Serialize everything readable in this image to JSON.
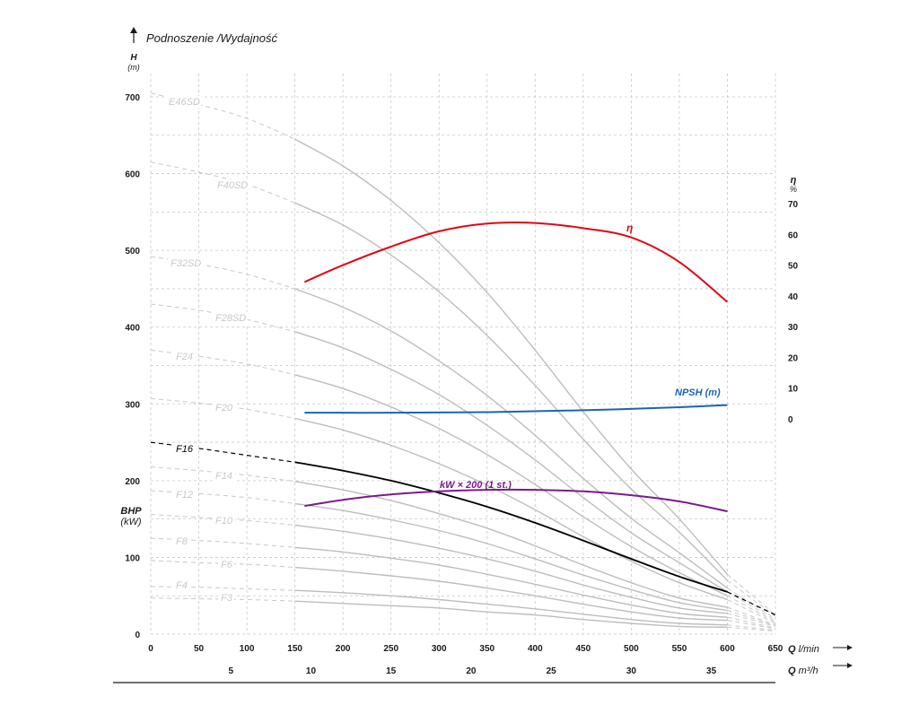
{
  "chart_data": {
    "type": "line",
    "title": "Podnoszenie /Wydajność",
    "x_axis": {
      "label": "Q l/min",
      "range": [
        0,
        650
      ],
      "ticks": [
        0,
        50,
        100,
        150,
        200,
        250,
        300,
        350,
        400,
        450,
        500,
        550,
        600,
        650
      ]
    },
    "x2_axis": {
      "label": "Q m³/h",
      "ticks": [
        5,
        10,
        15,
        20,
        25,
        30,
        35
      ]
    },
    "y_axis": {
      "label": "H",
      "unit": "(m)",
      "range": [
        0,
        700
      ],
      "ticks": [
        0,
        100,
        200,
        300,
        400,
        500,
        600,
        700
      ],
      "bhp_label": "BHP",
      "bhp_unit": "(kW)"
    },
    "y2_axis": {
      "label": "η",
      "unit": "%",
      "range": [
        0,
        70
      ],
      "ticks": [
        0,
        10,
        20,
        30,
        40,
        50,
        60,
        70
      ]
    },
    "series": [
      {
        "name": "E46SD",
        "color": "#bdbdbd",
        "values": [
          [
            0,
            705
          ],
          [
            50,
            690
          ],
          [
            100,
            672
          ],
          [
            150,
            645
          ],
          [
            200,
            610
          ],
          [
            250,
            565
          ],
          [
            300,
            510
          ],
          [
            350,
            445
          ],
          [
            400,
            370
          ],
          [
            450,
            290
          ],
          [
            500,
            215
          ],
          [
            550,
            150
          ],
          [
            600,
            78
          ],
          [
            650,
            25
          ]
        ]
      },
      {
        "name": "F40SD",
        "color": "#bdbdbd",
        "values": [
          [
            0,
            615
          ],
          [
            50,
            602
          ],
          [
            100,
            586
          ],
          [
            150,
            562
          ],
          [
            200,
            533
          ],
          [
            250,
            494
          ],
          [
            300,
            446
          ],
          [
            350,
            389
          ],
          [
            400,
            324
          ],
          [
            450,
            254
          ],
          [
            500,
            189
          ],
          [
            550,
            133
          ],
          [
            600,
            70
          ],
          [
            650,
            23
          ]
        ]
      },
      {
        "name": "F32SD",
        "color": "#bdbdbd",
        "values": [
          [
            0,
            492
          ],
          [
            50,
            482
          ],
          [
            100,
            469
          ],
          [
            150,
            450
          ],
          [
            200,
            426
          ],
          [
            250,
            395
          ],
          [
            300,
            356
          ],
          [
            350,
            311
          ],
          [
            400,
            259
          ],
          [
            450,
            203
          ],
          [
            500,
            151
          ],
          [
            550,
            106
          ],
          [
            600,
            60
          ],
          [
            650,
            20
          ]
        ]
      },
      {
        "name": "F28SD",
        "color": "#bdbdbd",
        "values": [
          [
            0,
            430
          ],
          [
            50,
            422
          ],
          [
            100,
            410
          ],
          [
            150,
            394
          ],
          [
            200,
            373
          ],
          [
            250,
            345
          ],
          [
            300,
            312
          ],
          [
            350,
            272
          ],
          [
            400,
            227
          ],
          [
            450,
            178
          ],
          [
            500,
            132
          ],
          [
            550,
            93
          ],
          [
            600,
            55
          ],
          [
            650,
            18
          ]
        ]
      },
      {
        "name": "F24",
        "color": "#bdbdbd",
        "values": [
          [
            0,
            370
          ],
          [
            50,
            362
          ],
          [
            100,
            352
          ],
          [
            150,
            338
          ],
          [
            200,
            320
          ],
          [
            250,
            296
          ],
          [
            300,
            268
          ],
          [
            350,
            234
          ],
          [
            400,
            195
          ],
          [
            450,
            153
          ],
          [
            500,
            114
          ],
          [
            550,
            80
          ],
          [
            600,
            50
          ],
          [
            650,
            16
          ]
        ]
      },
      {
        "name": "F20",
        "color": "#bdbdbd",
        "values": [
          [
            0,
            307
          ],
          [
            50,
            301
          ],
          [
            100,
            293
          ],
          [
            150,
            281
          ],
          [
            200,
            266
          ],
          [
            250,
            246
          ],
          [
            300,
            222
          ],
          [
            350,
            194
          ],
          [
            400,
            162
          ],
          [
            450,
            127
          ],
          [
            500,
            95
          ],
          [
            550,
            67
          ],
          [
            600,
            45
          ],
          [
            650,
            14
          ]
        ]
      },
      {
        "name": "F16",
        "color": "#000000",
        "values": [
          [
            0,
            250
          ],
          [
            50,
            242
          ],
          [
            100,
            233
          ],
          [
            150,
            224
          ],
          [
            200,
            213
          ],
          [
            250,
            200
          ],
          [
            300,
            184
          ],
          [
            350,
            166
          ],
          [
            400,
            145
          ],
          [
            450,
            122
          ],
          [
            500,
            98
          ],
          [
            550,
            75
          ],
          [
            600,
            55
          ],
          [
            650,
            25
          ]
        ]
      },
      {
        "name": "F14",
        "color": "#bdbdbd",
        "values": [
          [
            0,
            218
          ],
          [
            50,
            213
          ],
          [
            100,
            207
          ],
          [
            150,
            199
          ],
          [
            200,
            188
          ],
          [
            250,
            174
          ],
          [
            300,
            157
          ],
          [
            350,
            138
          ],
          [
            400,
            115
          ],
          [
            450,
            90
          ],
          [
            500,
            67
          ],
          [
            550,
            47
          ],
          [
            600,
            35
          ],
          [
            650,
            12
          ]
        ]
      },
      {
        "name": "F12",
        "color": "#bdbdbd",
        "values": [
          [
            0,
            187
          ],
          [
            50,
            183
          ],
          [
            100,
            178
          ],
          [
            150,
            170
          ],
          [
            200,
            161
          ],
          [
            250,
            149
          ],
          [
            300,
            135
          ],
          [
            350,
            118
          ],
          [
            400,
            98
          ],
          [
            450,
            77
          ],
          [
            500,
            58
          ],
          [
            550,
            41
          ],
          [
            600,
            31
          ],
          [
            650,
            11
          ]
        ]
      },
      {
        "name": "F10",
        "color": "#bdbdbd",
        "values": [
          [
            0,
            156
          ],
          [
            50,
            152
          ],
          [
            100,
            148
          ],
          [
            150,
            142
          ],
          [
            200,
            134
          ],
          [
            250,
            124
          ],
          [
            300,
            112
          ],
          [
            350,
            98
          ],
          [
            400,
            82
          ],
          [
            450,
            64
          ],
          [
            500,
            48
          ],
          [
            550,
            34
          ],
          [
            600,
            27
          ],
          [
            650,
            10
          ]
        ]
      },
      {
        "name": "F8",
        "color": "#bdbdbd",
        "values": [
          [
            0,
            125
          ],
          [
            50,
            122
          ],
          [
            100,
            118
          ],
          [
            150,
            113
          ],
          [
            200,
            107
          ],
          [
            250,
            99
          ],
          [
            300,
            90
          ],
          [
            350,
            78
          ],
          [
            400,
            65
          ],
          [
            450,
            51
          ],
          [
            500,
            38
          ],
          [
            550,
            27
          ],
          [
            600,
            22
          ],
          [
            650,
            8
          ]
        ]
      },
      {
        "name": "F6",
        "color": "#bdbdbd",
        "values": [
          [
            0,
            96
          ],
          [
            50,
            93
          ],
          [
            100,
            91
          ],
          [
            150,
            87
          ],
          [
            200,
            82
          ],
          [
            250,
            76
          ],
          [
            300,
            69
          ],
          [
            350,
            60
          ],
          [
            400,
            50
          ],
          [
            450,
            39
          ],
          [
            500,
            29
          ],
          [
            550,
            21
          ],
          [
            600,
            18
          ],
          [
            650,
            7
          ]
        ]
      },
      {
        "name": "F4",
        "color": "#bdbdbd",
        "values": [
          [
            0,
            62
          ],
          [
            50,
            61
          ],
          [
            100,
            59
          ],
          [
            150,
            57
          ],
          [
            200,
            54
          ],
          [
            250,
            50
          ],
          [
            300,
            45
          ],
          [
            350,
            39
          ],
          [
            400,
            33
          ],
          [
            450,
            26
          ],
          [
            500,
            19
          ],
          [
            550,
            14
          ],
          [
            600,
            12
          ],
          [
            650,
            5
          ]
        ]
      },
      {
        "name": "F3",
        "color": "#bdbdbd",
        "values": [
          [
            0,
            47
          ],
          [
            50,
            46
          ],
          [
            100,
            45
          ],
          [
            150,
            43
          ],
          [
            200,
            40
          ],
          [
            250,
            37
          ],
          [
            300,
            34
          ],
          [
            350,
            29
          ],
          [
            400,
            25
          ],
          [
            450,
            19
          ],
          [
            500,
            14
          ],
          [
            550,
            10
          ],
          [
            600,
            9
          ],
          [
            650,
            4
          ]
        ]
      },
      {
        "name": "η",
        "color": "#e30613",
        "axis": "y2",
        "values": [
          [
            160,
            44.5
          ],
          [
            200,
            50
          ],
          [
            250,
            56
          ],
          [
            300,
            61
          ],
          [
            350,
            63.5
          ],
          [
            400,
            63.7
          ],
          [
            450,
            62
          ],
          [
            500,
            59
          ],
          [
            550,
            51
          ],
          [
            600,
            38
          ]
        ]
      },
      {
        "name": "NPSH (m)",
        "color": "#1b64b5",
        "axis": "y2",
        "values": [
          [
            160,
            2
          ],
          [
            250,
            2
          ],
          [
            350,
            2.2
          ],
          [
            450,
            2.8
          ],
          [
            550,
            3.8
          ],
          [
            600,
            4.5
          ]
        ]
      },
      {
        "name": "kW × 200 (1 st.)",
        "color": "#7b1a8c",
        "values": [
          [
            160,
            167
          ],
          [
            200,
            175
          ],
          [
            250,
            182
          ],
          [
            300,
            186
          ],
          [
            350,
            188
          ],
          [
            400,
            188
          ],
          [
            450,
            186
          ],
          [
            500,
            181
          ],
          [
            550,
            173
          ],
          [
            600,
            160
          ]
        ]
      }
    ]
  }
}
